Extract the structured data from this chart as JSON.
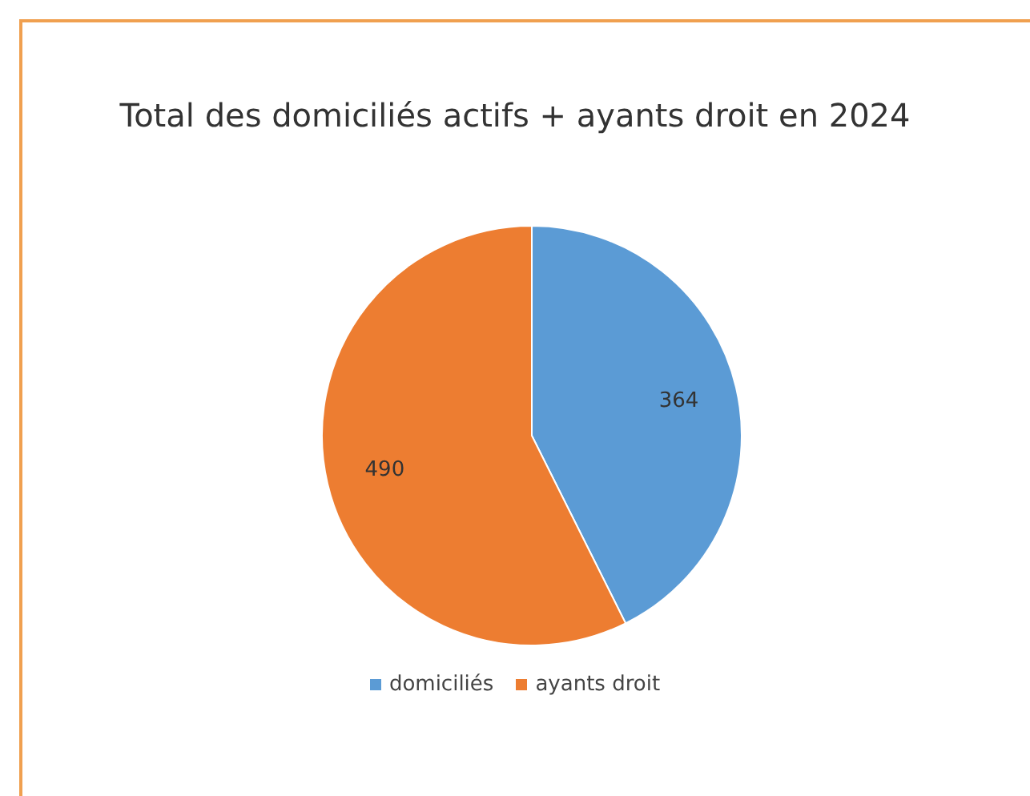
{
  "chart_data": {
    "type": "pie",
    "title": "Total des domiciliés actifs + ayants droit en 2024",
    "categories": [
      "domiciliés",
      "ayants droit"
    ],
    "values": [
      364,
      490
    ],
    "colors": [
      "#5b9bd5",
      "#ed7d31"
    ],
    "data_labels": true,
    "legend": "bottom"
  }
}
